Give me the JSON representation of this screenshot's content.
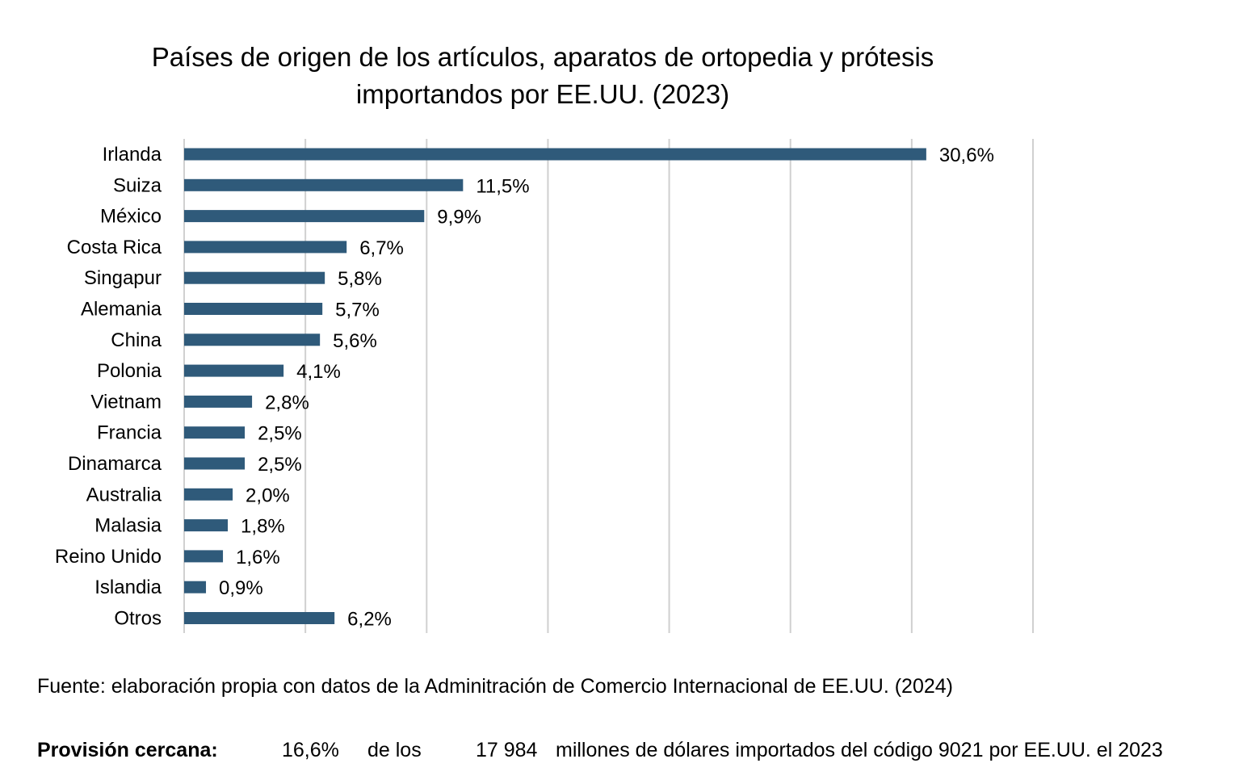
{
  "chart_data": {
    "type": "bar",
    "orientation": "horizontal",
    "title_lines": [
      "Países de origen de los artículos, aparatos de ortopedia y prótesis",
      "importandos por EE.UU. (2023)"
    ],
    "categories": [
      "Irlanda",
      "Suiza",
      "México",
      "Costa Rica",
      "Singapur",
      "Alemania",
      "China",
      "Polonia",
      "Vietnam",
      "Francia",
      "Dinamarca",
      "Australia",
      "Malasia",
      "Reino Unido",
      "Islandia",
      "Otros"
    ],
    "values": [
      30.6,
      11.5,
      9.9,
      6.7,
      5.8,
      5.7,
      5.6,
      4.1,
      2.8,
      2.5,
      2.5,
      2.0,
      1.8,
      1.6,
      0.9,
      6.2
    ],
    "value_labels": [
      "30,6%",
      "11,5%",
      "9,9%",
      "6,7%",
      "5,8%",
      "5,7%",
      "5,6%",
      "4,1%",
      "2,8%",
      "2,5%",
      "2,5%",
      "2,0%",
      "1,8%",
      "1,6%",
      "0,9%",
      "6,2%"
    ],
    "xlim": [
      0,
      35
    ],
    "grid_step": 5,
    "grid": true,
    "bar_color": "#2f5a7a",
    "xlabel": "",
    "ylabel": ""
  },
  "footer": {
    "source": "Fuente: elaboración propia con datos de la Adminitración de Comercio Internacional de EE.UU. (2024)",
    "provision_label": "Provisión cercana:",
    "provision_percent": "16,6%",
    "provision_of": "de los",
    "provision_amount": "17 984",
    "provision_rest": "millones de dólares importados del código 9021 por EE.UU. el 2023"
  }
}
